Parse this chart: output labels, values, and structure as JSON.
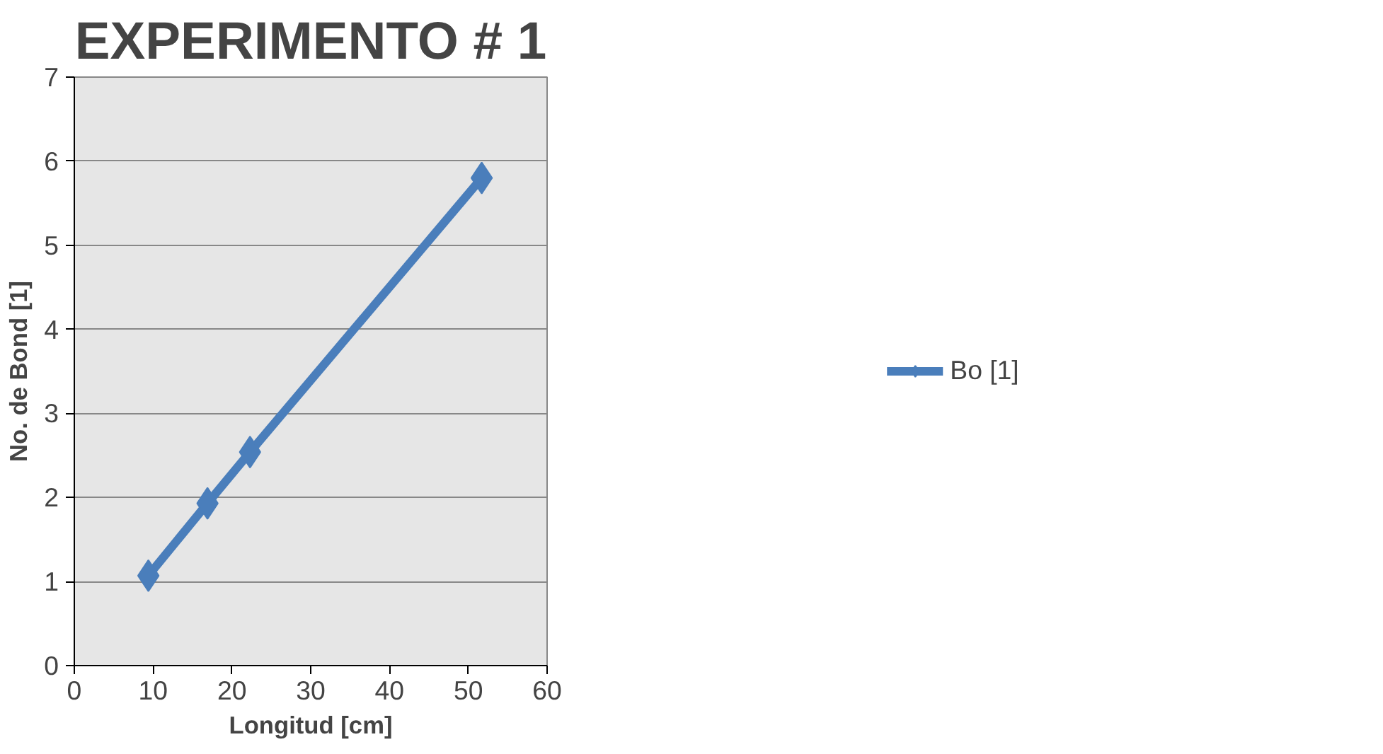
{
  "chart_data": {
    "type": "line",
    "title": "EXPERIMENTO # 1",
    "xlabel": "Longitud [cm]",
    "ylabel": "No. de Bond [1]",
    "x": [
      9.4,
      16.9,
      22.3,
      51.7
    ],
    "series": [
      {
        "name": "Bo [1]",
        "color": "#4a7ebb",
        "values": [
          1.07,
          1.93,
          2.54,
          5.8
        ]
      }
    ],
    "xlim": [
      0,
      60
    ],
    "xticks": [
      0,
      10,
      20,
      30,
      40,
      50,
      60
    ],
    "ylim": [
      0,
      7
    ],
    "yticks": [
      0,
      1,
      2,
      3,
      4,
      5,
      6,
      7
    ],
    "grid": "y",
    "legend": "right",
    "marker": "diamond",
    "line_style": "solid"
  }
}
